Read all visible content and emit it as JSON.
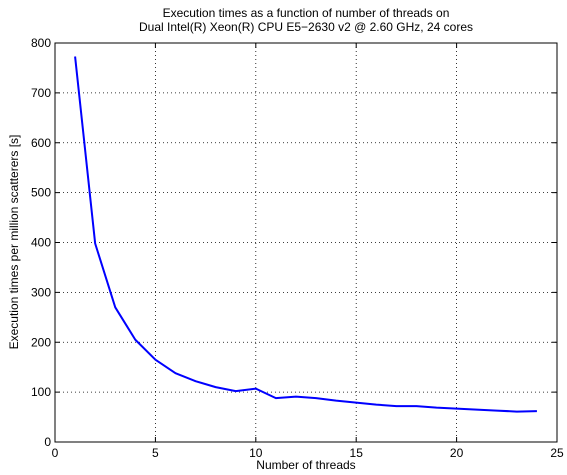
{
  "chart_data": {
    "type": "line",
    "title": [
      "Execution times as a function of number of threads on",
      "Dual Intel(R) Xeon(R) CPU E5−2630 v2 @ 2.60 GHz, 24 cores"
    ],
    "x_label": "Number of threads",
    "y_label": "Execution times per million scatterers [s]",
    "x": [
      1,
      2,
      3,
      4,
      5,
      6,
      7,
      8,
      9,
      10,
      11,
      12,
      13,
      14,
      15,
      16,
      17,
      18,
      19,
      20,
      21,
      22,
      23,
      24
    ],
    "series": [
      {
        "name": "Execution time",
        "color": "#0000ff",
        "values": [
          773,
          398,
          270,
          205,
          165,
          138,
          122,
          110,
          102,
          107,
          88,
          91,
          88,
          83,
          79,
          75,
          72,
          72,
          69,
          67,
          65,
          63,
          61,
          62
        ]
      }
    ],
    "xlim": [
      0,
      25
    ],
    "xticks": [
      0,
      5,
      10,
      15,
      20,
      25
    ],
    "ylim": [
      0,
      800
    ],
    "yticks": [
      0,
      100,
      200,
      300,
      400,
      500,
      600,
      700,
      800
    ],
    "grid": true
  }
}
